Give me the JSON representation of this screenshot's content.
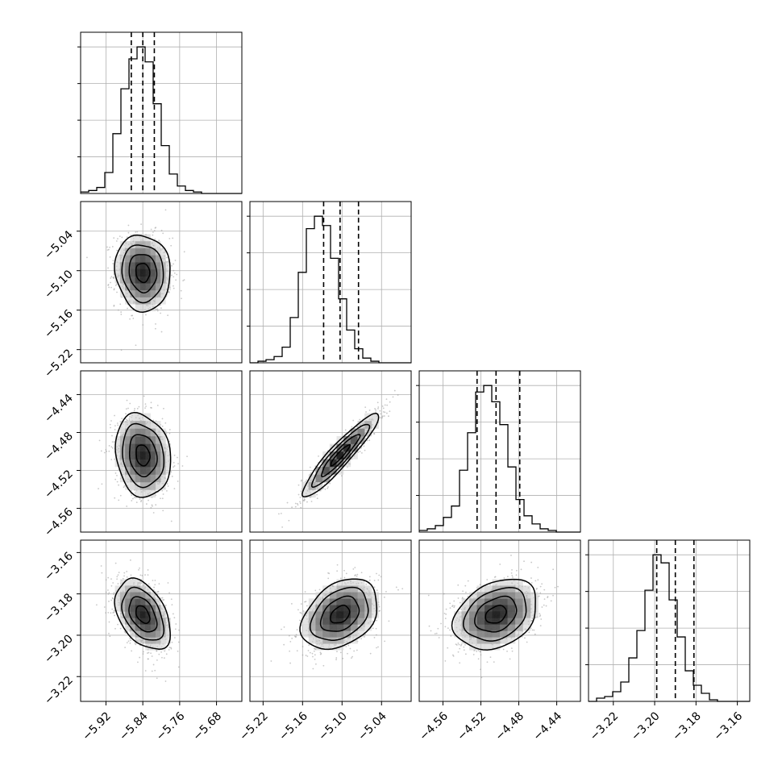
{
  "chart_data": {
    "type": "corner",
    "description_note": "",
    "parameters": [
      {
        "id": "p0",
        "range": [
          -5.975,
          -5.625
        ],
        "ticks": [
          -5.92,
          -5.84,
          -5.76,
          -5.68
        ],
        "tick_labels": [
          "−5.92",
          "−5.84",
          "−5.76",
          "−5.68"
        ],
        "quantiles": [
          -5.865,
          -5.84,
          -5.815
        ],
        "hist_edges_start": -5.975,
        "hist_bin_width": 0.0175,
        "hist_counts": [
          1,
          2,
          4,
          14,
          40,
          70,
          90,
          98,
          88,
          60,
          32,
          13,
          5,
          2,
          1,
          0,
          0,
          0,
          0,
          0
        ]
      },
      {
        "id": "p1",
        "range": [
          -5.24,
          -4.995
        ],
        "ticks": [
          -5.22,
          -5.16,
          -5.1,
          -5.04
        ],
        "tick_labels": [
          "−5.22",
          "−5.16",
          "−5.10",
          "−5.04"
        ],
        "quantiles": [
          -5.128,
          -5.103,
          -5.075
        ],
        "hist_edges_start": -5.24,
        "hist_bin_width": 0.01225,
        "hist_counts": [
          0,
          1,
          2,
          4,
          10,
          29,
          58,
          86,
          94,
          88,
          67,
          41,
          21,
          9,
          3,
          1,
          0,
          0,
          0,
          0
        ]
      },
      {
        "id": "p2",
        "range": [
          -4.585,
          -4.415
        ],
        "ticks": [
          -4.56,
          -4.52,
          -4.48,
          -4.44
        ],
        "tick_labels": [
          "−4.56",
          "−4.52",
          "−4.48",
          "−4.44"
        ],
        "quantiles": [
          -4.524,
          -4.504,
          -4.479
        ],
        "hist_edges_start": -4.585,
        "hist_bin_width": 0.0085,
        "hist_counts": [
          1,
          2,
          4,
          9,
          16,
          38,
          61,
          86,
          90,
          80,
          66,
          40,
          20,
          10,
          5,
          2,
          1,
          0,
          0,
          0
        ]
      },
      {
        "id": "p3",
        "range": [
          -3.232,
          -3.154
        ],
        "ticks": [
          -3.22,
          -3.2,
          -3.18,
          -3.16
        ],
        "tick_labels": [
          "−3.22",
          "−3.20",
          "−3.18",
          "−3.16"
        ],
        "quantiles": [
          -3.199,
          -3.19,
          -3.181
        ],
        "hist_edges_start": -3.232,
        "hist_bin_width": 0.0039,
        "hist_counts": [
          0,
          2,
          3,
          6,
          12,
          27,
          44,
          69,
          91,
          86,
          63,
          40,
          19,
          10,
          5,
          1,
          0,
          0,
          0,
          0
        ]
      }
    ],
    "pairs": [
      {
        "row": 1,
        "col": 0,
        "center": [
          -5.84,
          -5.103
        ],
        "sigma": [
          0.03,
          0.029
        ],
        "rho": -0.08
      },
      {
        "row": 2,
        "col": 0,
        "center": [
          -5.84,
          -4.504
        ],
        "sigma": [
          0.03,
          0.022
        ],
        "rho": -0.15
      },
      {
        "row": 2,
        "col": 1,
        "center": [
          -5.103,
          -4.504
        ],
        "sigma": [
          0.029,
          0.022
        ],
        "rho": 0.93
      },
      {
        "row": 3,
        "col": 0,
        "center": [
          -5.84,
          -3.19
        ],
        "sigma": [
          0.03,
          0.0085
        ],
        "rho": -0.42
      },
      {
        "row": 3,
        "col": 1,
        "center": [
          -5.103,
          -3.19
        ],
        "sigma": [
          0.029,
          0.0085
        ],
        "rho": 0.35
      },
      {
        "row": 3,
        "col": 2,
        "center": [
          -4.504,
          -3.19
        ],
        "sigma": [
          0.022,
          0.0085
        ],
        "rho": 0.3
      }
    ],
    "contour_levels_sigma": [
      0.5,
      1.0,
      1.5,
      2.0
    ],
    "scatter_points_per_panel": 900,
    "grid": true,
    "colors": {
      "line": "#000000",
      "grid": "#b0b0b0",
      "scatter": "#9a9a9a",
      "density_dark": "#000000"
    }
  }
}
